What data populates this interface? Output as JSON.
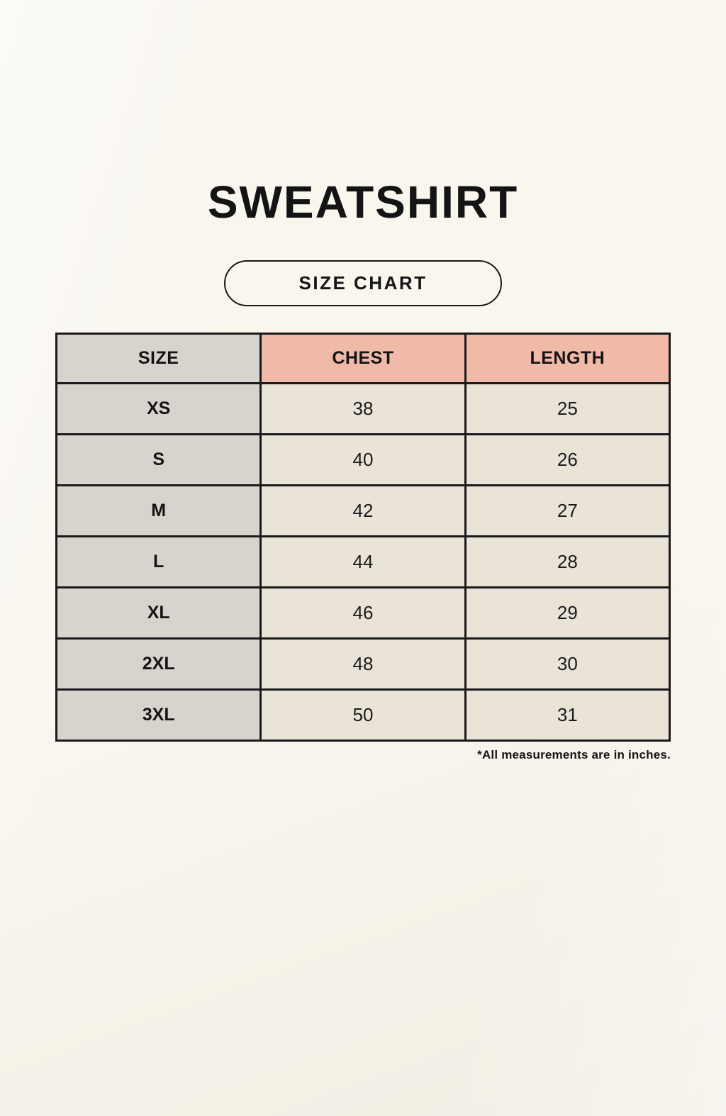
{
  "header": {
    "title": "SWEATSHIRT",
    "badge_label": "SIZE CHART"
  },
  "chart_data": {
    "type": "table",
    "title": "SWEATSHIRT SIZE CHART",
    "columns": [
      "SIZE",
      "CHEST",
      "LENGTH"
    ],
    "rows": [
      [
        "XS",
        "38",
        "25"
      ],
      [
        "S",
        "40",
        "26"
      ],
      [
        "M",
        "42",
        "27"
      ],
      [
        "L",
        "44",
        "28"
      ],
      [
        "XL",
        "46",
        "29"
      ],
      [
        "2XL",
        "48",
        "30"
      ],
      [
        "3XL",
        "50",
        "31"
      ]
    ],
    "units": "inches"
  },
  "footer": {
    "note": "*All measurements are in inches."
  },
  "colors": {
    "page_background": "#f9f6ee",
    "size_column_bg": "#d9d3cd",
    "header_accent_bg": "#f0b9a8",
    "data_cell_bg": "#e9e3d8",
    "border": "#1a1a1a",
    "text": "#141414"
  }
}
